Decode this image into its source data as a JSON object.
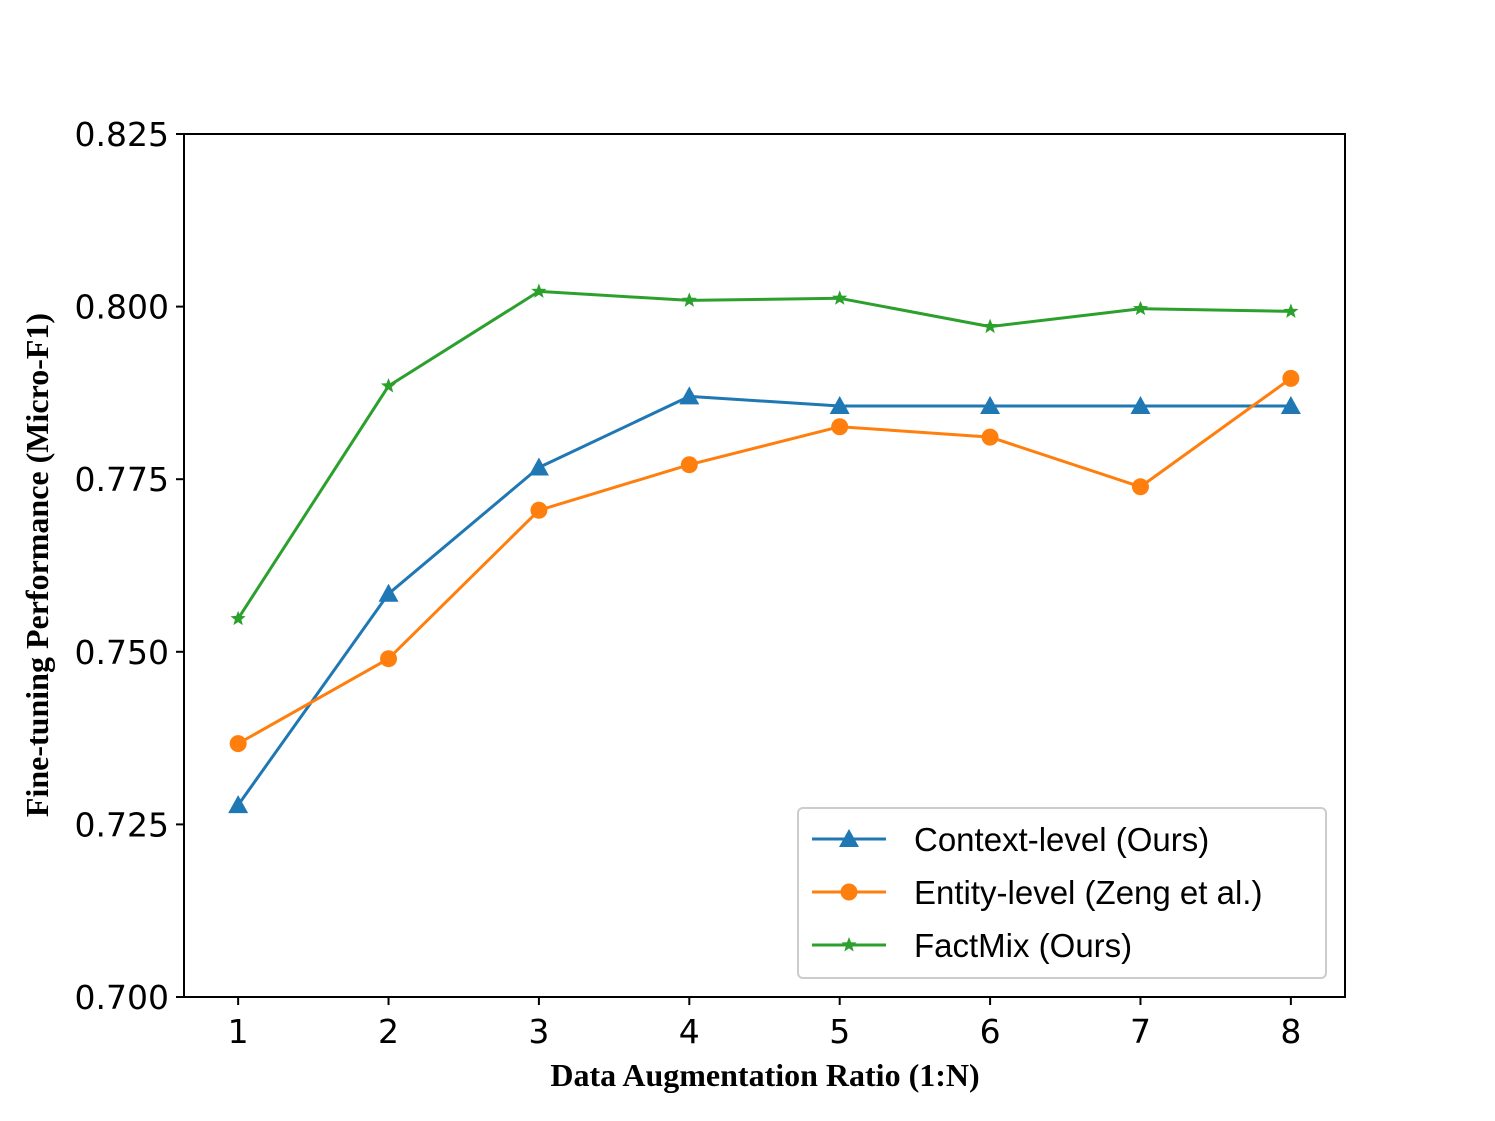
{
  "chart_data": {
    "type": "line",
    "title": "",
    "xlabel": "Data Augmentation Ratio (1:N)",
    "ylabel": "Fine-tuning Performance (Micro-F1)",
    "x": [
      1,
      2,
      3,
      4,
      5,
      6,
      7,
      8
    ],
    "xlim": [
      0.64,
      8.36
    ],
    "ylim": [
      0.7,
      0.825
    ],
    "xticks": [
      1,
      2,
      3,
      4,
      5,
      6,
      7,
      8
    ],
    "xtick_labels": [
      "1",
      "2",
      "3",
      "4",
      "5",
      "6",
      "7",
      "8"
    ],
    "yticks": [
      0.7,
      0.725,
      0.75,
      0.775,
      0.8,
      0.825
    ],
    "ytick_labels": [
      "0.700",
      "0.725",
      "0.750",
      "0.775",
      "0.800",
      "0.825"
    ],
    "grid": false,
    "legend_position": "lower-right",
    "series": [
      {
        "name": "Context-level (Ours)",
        "color": "#1f77b4",
        "marker": "triangle",
        "values": [
          0.7278,
          0.7584,
          0.7767,
          0.787,
          0.7856,
          0.7856,
          0.7856,
          0.7856
        ]
      },
      {
        "name": "Entity-level (Zeng et al.)",
        "color": "#ff7f0e",
        "marker": "circle",
        "values": [
          0.7367,
          0.749,
          0.7705,
          0.7771,
          0.7826,
          0.7811,
          0.7739,
          0.7896
        ]
      },
      {
        "name": "FactMix (Ours)",
        "color": "#2ca02c",
        "marker": "star",
        "values": [
          0.7548,
          0.7885,
          0.8022,
          0.8009,
          0.8012,
          0.7971,
          0.7997,
          0.7993
        ]
      }
    ]
  }
}
